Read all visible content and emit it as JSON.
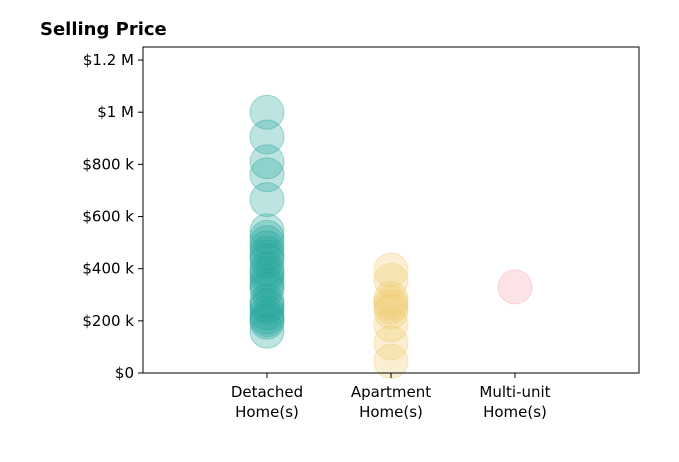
{
  "chart_data": {
    "type": "scatter",
    "title": "Selling Price",
    "xlabel": "",
    "ylabel": "",
    "ylim": [
      0,
      1250000
    ],
    "yticks": [
      {
        "value": 0,
        "label": "$0"
      },
      {
        "value": 200000,
        "label": "$200 k"
      },
      {
        "value": 400000,
        "label": "$400 k"
      },
      {
        "value": 600000,
        "label": "$600 k"
      },
      {
        "value": 800000,
        "label": "$800 k"
      },
      {
        "value": 1000000,
        "label": "$1 M"
      },
      {
        "value": 1200000,
        "label": "$1.2 M"
      }
    ],
    "grid": false,
    "categories": [
      {
        "label": [
          "Detached",
          "Home(s)"
        ],
        "color": "#26a69a"
      },
      {
        "label": [
          "Apartment",
          "Home(s)"
        ],
        "color": "#f0c96a"
      },
      {
        "label": [
          "Multi-unit",
          "Home(s)"
        ],
        "color": "#f4a3ac"
      }
    ],
    "series": [
      {
        "category": 0,
        "values": [
          1000000,
          905000,
          810000,
          760000,
          665000,
          545000,
          520000,
          500000,
          480000,
          460000,
          445000,
          430000,
          400000,
          385000,
          370000,
          350000,
          335000,
          320000,
          275000,
          260000,
          250000,
          230000,
          215000,
          205000,
          195000,
          160000
        ]
      },
      {
        "category": 1,
        "values": [
          395000,
          355000,
          285000,
          270000,
          255000,
          235000,
          185000,
          115000,
          45000
        ]
      },
      {
        "category": 2,
        "values": [
          330000
        ]
      }
    ]
  }
}
